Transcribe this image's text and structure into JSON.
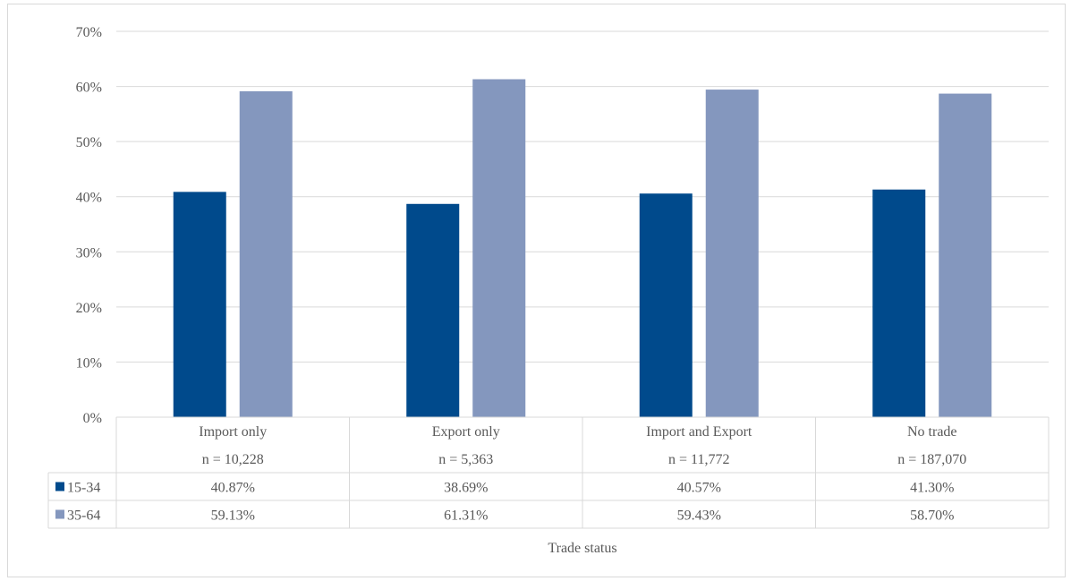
{
  "chart_data": {
    "type": "bar",
    "categories": [
      "Import only",
      "Export only",
      "Import and Export",
      "No trade"
    ],
    "category_counts": [
      "n = 10,228",
      "n = 5,363",
      "n = 11,772",
      "n = 187,070"
    ],
    "series": [
      {
        "name": "15-34",
        "values": [
          40.87,
          38.69,
          40.57,
          41.3
        ],
        "labels": [
          "40.87%",
          "38.69%",
          "40.57%",
          "41.30%"
        ],
        "color": "#004a8c"
      },
      {
        "name": "35-64",
        "values": [
          59.13,
          61.31,
          59.43,
          58.7
        ],
        "labels": [
          "59.13%",
          "61.31%",
          "59.43%",
          "58.70%"
        ],
        "color": "#8497be"
      }
    ],
    "xlabel": "Trade status",
    "ylabel": "",
    "ylim": [
      0,
      70
    ],
    "yticks": [
      0,
      10,
      20,
      30,
      40,
      50,
      60,
      70
    ],
    "ytick_labels": [
      "0%",
      "10%",
      "20%",
      "30%",
      "40%",
      "50%",
      "60%",
      "70%"
    ],
    "grid": true,
    "legend": "data-table"
  }
}
